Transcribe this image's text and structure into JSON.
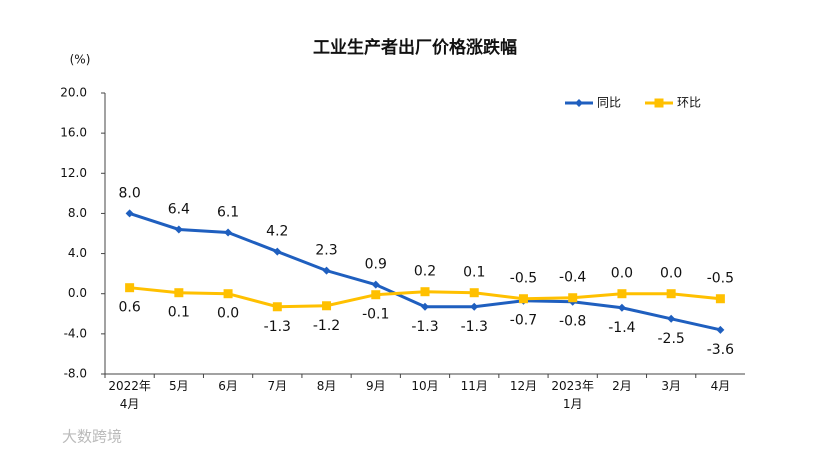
{
  "chart_data": {
    "type": "line",
    "title": "工业生产者出厂价格涨跌幅",
    "y_label": "(%)",
    "categories": [
      "2022年\n4月",
      "5月",
      "6月",
      "7月",
      "8月",
      "9月",
      "10月",
      "11月",
      "12月",
      "2023年\n1月",
      "2月",
      "3月",
      "4月"
    ],
    "series": [
      {
        "name": "同比",
        "color": "#1f5fbf",
        "marker": "diamond",
        "values": [
          8.0,
          6.4,
          6.1,
          4.2,
          2.3,
          0.9,
          -1.3,
          -1.3,
          -0.7,
          -0.8,
          -1.4,
          -2.5,
          -3.6
        ],
        "value_labels": [
          "8.0",
          "6.4",
          "6.1",
          "4.2",
          "2.3",
          "0.9",
          "-1.3",
          "-1.3",
          "-0.7",
          "-0.8",
          "-1.4",
          "-2.5",
          "-3.6"
        ]
      },
      {
        "name": "环比",
        "color": "#ffc000",
        "marker": "square",
        "values": [
          0.6,
          0.1,
          0.0,
          -1.3,
          -1.2,
          -0.1,
          0.2,
          0.1,
          -0.5,
          -0.4,
          0.0,
          0.0,
          -0.5
        ],
        "value_labels": [
          "0.6",
          "0.1",
          "0.0",
          "-1.3",
          "-1.2",
          "-0.1",
          "0.2",
          "0.1",
          "-0.5",
          "-0.4",
          "0.0",
          "0.0",
          "-0.5"
        ]
      }
    ],
    "ylim": [
      -8,
      20
    ],
    "yticks": [
      {
        "value": -8,
        "label": "-8.0"
      },
      {
        "value": -4,
        "label": "-4.0"
      },
      {
        "value": 0,
        "label": "0.0"
      },
      {
        "value": 4,
        "label": "4.0"
      },
      {
        "value": 8,
        "label": "8.0"
      },
      {
        "value": 12,
        "label": "12.0"
      },
      {
        "value": 16,
        "label": "16.0"
      },
      {
        "value": 20,
        "label": "20.0"
      }
    ],
    "legend": "top-right",
    "watermark": "大数跨境"
  }
}
